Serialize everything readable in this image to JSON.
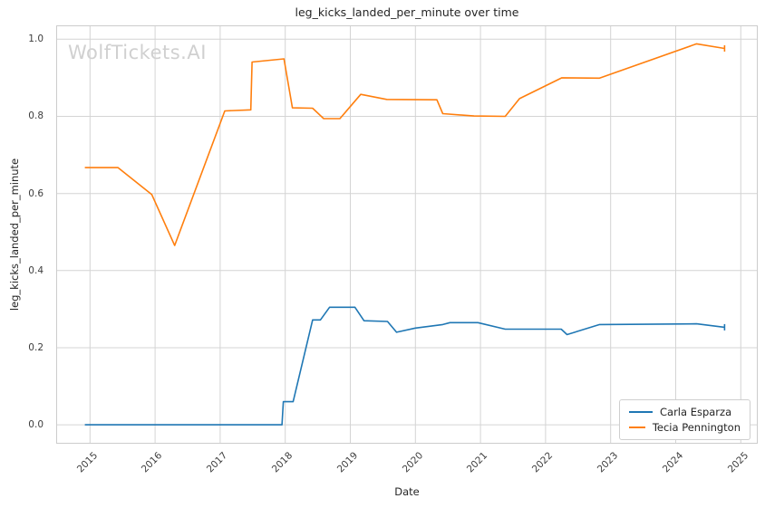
{
  "chart": {
    "title": "leg_kicks_landed_per_minute over time",
    "xlabel": "Date",
    "ylabel": "leg_kicks_landed_per_minute",
    "watermark": "WolfTickets.AI"
  },
  "chart_data": {
    "type": "line",
    "title": "leg_kicks_landed_per_minute over time",
    "xlabel": "Date",
    "ylabel": "leg_kicks_landed_per_minute",
    "grid": true,
    "legend_position": "lower right",
    "xlim": [
      2014.48,
      2025.26
    ],
    "ylim": [
      -0.049,
      1.036
    ],
    "xticks": {
      "values": [
        2015,
        2016,
        2017,
        2018,
        2019,
        2020,
        2021,
        2022,
        2023,
        2024,
        2025
      ],
      "labels": [
        "2015",
        "2016",
        "2017",
        "2018",
        "2019",
        "2020",
        "2021",
        "2022",
        "2023",
        "2024",
        "2025"
      ]
    },
    "yticks": {
      "values": [
        0.0,
        0.2,
        0.4,
        0.6,
        0.8,
        1.0
      ],
      "labels": [
        "0.0",
        "0.2",
        "0.4",
        "0.6",
        "0.8",
        "1.0"
      ]
    },
    "grid_color": "#d4d4d4",
    "border_color": "#cccccc",
    "series": [
      {
        "name": "Carla Esparza",
        "color": "#1f77b4",
        "points": [
          [
            2014.92,
            0.0
          ],
          [
            2017.95,
            0.0
          ],
          [
            2017.97,
            0.06
          ],
          [
            2018.12,
            0.06
          ],
          [
            2018.42,
            0.272
          ],
          [
            2018.54,
            0.272
          ],
          [
            2018.68,
            0.305
          ],
          [
            2019.07,
            0.305
          ],
          [
            2019.21,
            0.27
          ],
          [
            2019.57,
            0.268
          ],
          [
            2019.71,
            0.24
          ],
          [
            2020.0,
            0.251
          ],
          [
            2020.42,
            0.26
          ],
          [
            2020.53,
            0.265
          ],
          [
            2020.96,
            0.265
          ],
          [
            2021.38,
            0.248
          ],
          [
            2022.24,
            0.248
          ],
          [
            2022.33,
            0.234
          ],
          [
            2022.83,
            0.26
          ],
          [
            2024.32,
            0.262
          ],
          [
            2024.75,
            0.253
          ]
        ]
      },
      {
        "name": "Tecia Pennington",
        "color": "#ff7f0e",
        "points": [
          [
            2014.92,
            0.667
          ],
          [
            2015.43,
            0.667
          ],
          [
            2015.95,
            0.597
          ],
          [
            2016.3,
            0.465
          ],
          [
            2017.07,
            0.814
          ],
          [
            2017.47,
            0.817
          ],
          [
            2017.49,
            0.941
          ],
          [
            2017.98,
            0.949
          ],
          [
            2018.11,
            0.822
          ],
          [
            2018.42,
            0.821
          ],
          [
            2018.59,
            0.794
          ],
          [
            2018.84,
            0.794
          ],
          [
            2019.16,
            0.857
          ],
          [
            2019.56,
            0.844
          ],
          [
            2020.33,
            0.843
          ],
          [
            2020.42,
            0.807
          ],
          [
            2020.9,
            0.801
          ],
          [
            2021.38,
            0.8
          ],
          [
            2021.6,
            0.846
          ],
          [
            2022.25,
            0.9
          ],
          [
            2022.83,
            0.899
          ],
          [
            2024.32,
            0.988
          ],
          [
            2024.75,
            0.976
          ]
        ]
      }
    ]
  }
}
